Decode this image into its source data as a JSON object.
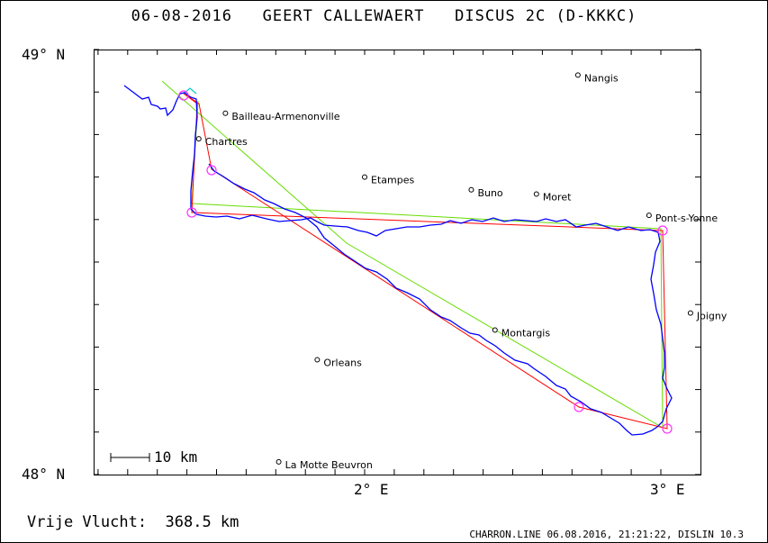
{
  "title": "06-08-2016   GEERT CALLEWAERT   DISCUS 2C (D-KKKC)",
  "axes": {
    "lat_max_label": "49° N",
    "lat_min_label": "48° N",
    "lon_labels": [
      "2° E",
      "3° E"
    ]
  },
  "scale_bar": {
    "label": "10 km"
  },
  "towns": [
    {
      "name": "Nangis",
      "lon": 2.72,
      "lat": 48.94
    },
    {
      "name": "Bailleau-Armenonville",
      "lon": 1.53,
      "lat": 48.85
    },
    {
      "name": "Chartres",
      "lon": 1.44,
      "lat": 48.79
    },
    {
      "name": "Etampes",
      "lon": 2.0,
      "lat": 48.7
    },
    {
      "name": "Buno",
      "lon": 2.36,
      "lat": 48.67
    },
    {
      "name": "Moret",
      "lon": 2.58,
      "lat": 48.66
    },
    {
      "name": "Pont-s-Yonne",
      "lon": 2.96,
      "lat": 48.61
    },
    {
      "name": "Joigny",
      "lon": 3.1,
      "lat": 48.38
    },
    {
      "name": "Montargis",
      "lon": 2.44,
      "lat": 48.34
    },
    {
      "name": "Orleans",
      "lon": 1.84,
      "lat": 48.27
    },
    {
      "name": "La Motte Beuvron",
      "lon": 1.71,
      "lat": 48.03
    }
  ],
  "colors": {
    "track": "#0000ff",
    "task_line": "#ff0000",
    "alt_line": "#66dd00",
    "start_line": "#00cccc",
    "turnpoint": "#ff33ff"
  },
  "footer": {
    "distance_label": "Vrije Vlucht:  368.5 km",
    "file_info": "CHARRON.LINE 06.08.2016, 21:21:22, DISLIN 10.3"
  }
}
